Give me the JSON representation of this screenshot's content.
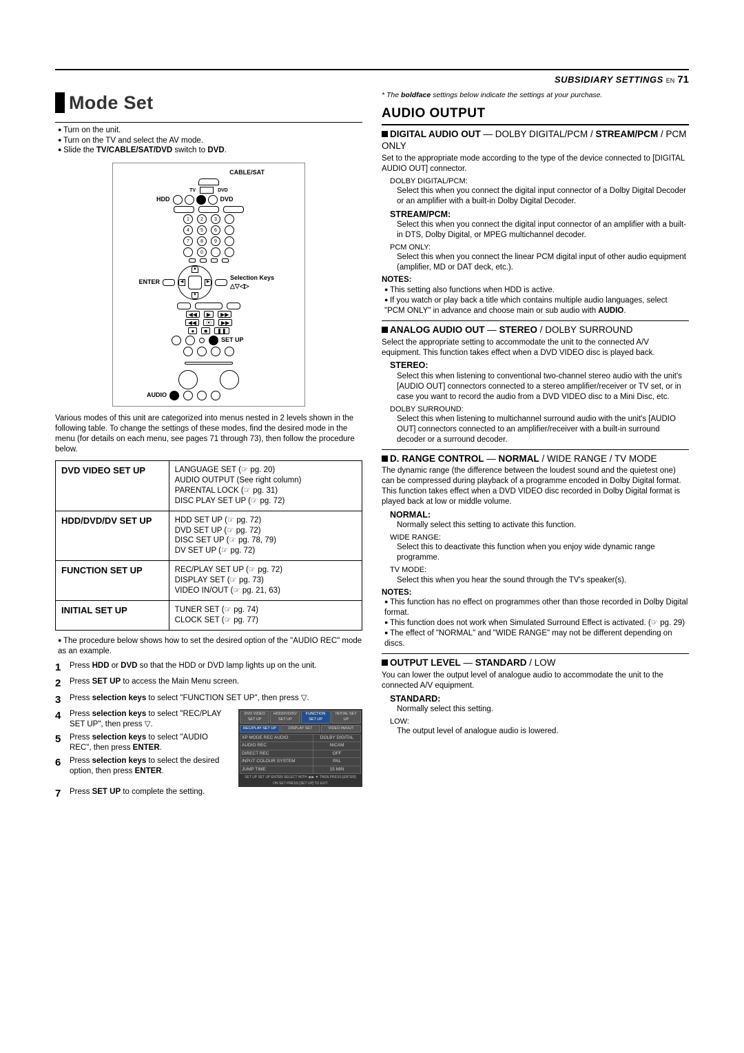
{
  "header": {
    "subsidiary": "SUBSIDIARY SETTINGS",
    "en": "EN",
    "page": "71"
  },
  "modeSet": {
    "title": "Mode Set",
    "bullets": [
      "Turn on the unit.",
      "Turn on the TV and select the AV mode.",
      "Slide the <b>TV/CABLE/SAT/DVD</b> switch to <b>DVD</b>."
    ],
    "remote": {
      "hdd": "HDD",
      "dvd": "DVD",
      "cable": "CABLE/SAT",
      "tv": "TV",
      "dvd2": "DVD",
      "enter": "ENTER",
      "selection": "Selection Keys",
      "arrows": "△▽◁▷",
      "setup": "SET UP",
      "audio": "AUDIO"
    },
    "para": "Various modes of this unit are categorized into menus nested in 2 levels shown in the following table. To change the settings of these modes, find the desired mode in the menu (for details on each menu, see pages 71 through 73), then follow the procedure below.",
    "table": [
      {
        "l": "DVD VIDEO SET UP",
        "r": "LANGUAGE SET (☞ pg. 20)<br>AUDIO OUTPUT (See right column)<br>PARENTAL LOCK (☞ pg. 31)<br>DISC PLAY SET UP (☞ pg. 72)"
      },
      {
        "l": "HDD/DVD/DV SET UP",
        "r": "HDD SET UP (☞ pg. 72)<br>DVD SET UP (☞ pg. 72)<br>DISC SET UP (☞ pg. 78, 79)<br>DV SET UP (☞ pg. 72)"
      },
      {
        "l": "FUNCTION SET UP",
        "r": "REC/PLAY SET UP (☞ pg. 72)<br>DISPLAY SET (☞ pg. 73)<br>VIDEO IN/OUT (☞ pg. 21, 63)"
      },
      {
        "l": "INITIAL SET UP",
        "r": "TUNER SET (☞ pg. 74)<br>CLOCK SET (☞ pg. 77)"
      }
    ],
    "procIntro": "The procedure below shows how to set the desired option of the \"AUDIO REC\" mode as an example.",
    "steps": [
      "Press <b>HDD</b> or <b>DVD</b> so that the HDD or DVD lamp lights up on the unit.",
      "Press <b>SET UP</b> to access the Main Menu screen.",
      "Press <b>selection keys</b> to select \"FUNCTION SET UP\", then press ▽.",
      "Press <b>selection keys</b> to select \"REC/PLAY SET UP\", then press ▽.",
      "Press <b>selection keys</b> to select \"AUDIO REC\", then press <b>ENTER</b>.",
      "Press <b>selection keys</b> to select the desired option, then press <b>ENTER</b>.",
      "Press <b>SET UP</b> to complete the setting."
    ],
    "screenshot": {
      "tabs": [
        "DVD VIDEO SET UP",
        "HDD/DVD/DV SET UP",
        "FUNCTION SET UP",
        "INITIAL SET UP"
      ],
      "subtabs": [
        "REC/PLAY SET UP",
        "DISPLAY SET",
        "VIDEO IN/OUT"
      ],
      "rows": [
        [
          "XP MODE REC AUDIO",
          "DOLBY DIGITAL"
        ],
        [
          "AUDIO REC",
          "NICAM"
        ],
        [
          "DIRECT REC",
          "OFF"
        ],
        [
          "INPUT COLOUR SYSTEM",
          "PAL"
        ],
        [
          "JUMP TIME",
          "15 MIN"
        ]
      ],
      "footer1": "SET UP SET UP ENTER    SELECT WITH ◀ ▶ ▼ THEN PRESS [ENTER]",
      "footer2": "ON SET    PRESS [SET UP] TO EXIT"
    }
  },
  "right": {
    "footnote": "* The <b>boldface</b> settings below indicate the settings at your purchase.",
    "audioOutput": "AUDIO OUTPUT",
    "digitalAudio": {
      "head": "<b>DIGITAL AUDIO OUT</b> — DOLBY DIGITAL/PCM / <b>STREAM/PCM</b> / PCM ONLY",
      "intro": "Set to the appropriate mode according to the type of the device connected to [DIGITAL AUDIO OUT] connector.",
      "opts": [
        {
          "n": "DOLBY DIGITAL/PCM:",
          "b": false,
          "d": "Select this when you connect the digital input connector of a Dolby Digital Decoder or an amplifier with a built-in Dolby Digital Decoder."
        },
        {
          "n": "STREAM/PCM:",
          "b": true,
          "d": "Select this when you connect the digital input connector of an amplifier with a built-in DTS, Dolby Digital, or MPEG multichannel decoder."
        },
        {
          "n": "PCM ONLY:",
          "b": false,
          "d": "Select this when you connect the linear PCM digital input of other audio equipment (amplifier, MD or DAT deck, etc.)."
        }
      ],
      "notes": [
        "This setting also functions when HDD is active.",
        "If you watch or play back a title which contains multiple audio languages, select \"PCM ONLY\" in advance and choose main or sub audio with <b>AUDIO</b>."
      ]
    },
    "analogAudio": {
      "head": "<b>ANALOG AUDIO OUT</b> — <b>STEREO</b> / DOLBY SURROUND",
      "intro": "Select the appropriate setting to accommodate the unit to the connected A/V equipment. This function takes effect when a DVD VIDEO disc is played back.",
      "opts": [
        {
          "n": "STEREO:",
          "b": true,
          "d": "Select this when listening to conventional two-channel stereo audio with the unit's [AUDIO OUT] connectors connected to a stereo amplifier/receiver or TV set, or in case you want to record the audio from a DVD VIDEO disc to a Mini Disc, etc."
        },
        {
          "n": "DOLBY SURROUND:",
          "b": false,
          "d": "Select this when listening to multichannel surround audio with the unit's [AUDIO OUT] connectors connected to an amplifier/receiver with a built-in surround decoder or a surround decoder."
        }
      ]
    },
    "drange": {
      "head": "<b>D. RANGE CONTROL</b> — <b>NORMAL</b> / WIDE RANGE / TV MODE",
      "intro": "The dynamic range (the difference between the loudest sound and the quietest one) can be compressed during playback of a programme encoded in Dolby Digital format.<br>This function takes effect when a DVD VIDEO disc recorded in Dolby Digital format is played back at low or middle volume.",
      "opts": [
        {
          "n": "NORMAL:",
          "b": true,
          "d": "Normally select this setting to activate this function."
        },
        {
          "n": "WIDE RANGE:",
          "b": false,
          "d": "Select this to deactivate this function when you enjoy wide dynamic range programme."
        },
        {
          "n": "TV MODE:",
          "b": false,
          "d": "Select this when you hear the sound through the TV's speaker(s)."
        }
      ],
      "notes": [
        "This function has no effect on programmes other than those recorded in Dolby Digital format.",
        "This function does not work when Simulated Surround Effect is activated. (☞ pg. 29)",
        "The effect of \"NORMAL\" and \"WIDE RANGE\" may not be different depending on discs."
      ]
    },
    "output": {
      "head": "<b>OUTPUT LEVEL</b> — <b>STANDARD</b> / LOW",
      "intro": "You can lower the output level of analogue audio to accommodate the unit to the connected A/V equipment.",
      "opts": [
        {
          "n": "STANDARD:",
          "b": true,
          "d": "Normally select this setting."
        },
        {
          "n": "LOW:",
          "b": false,
          "d": "The output level of analogue audio is lowered."
        }
      ]
    }
  }
}
